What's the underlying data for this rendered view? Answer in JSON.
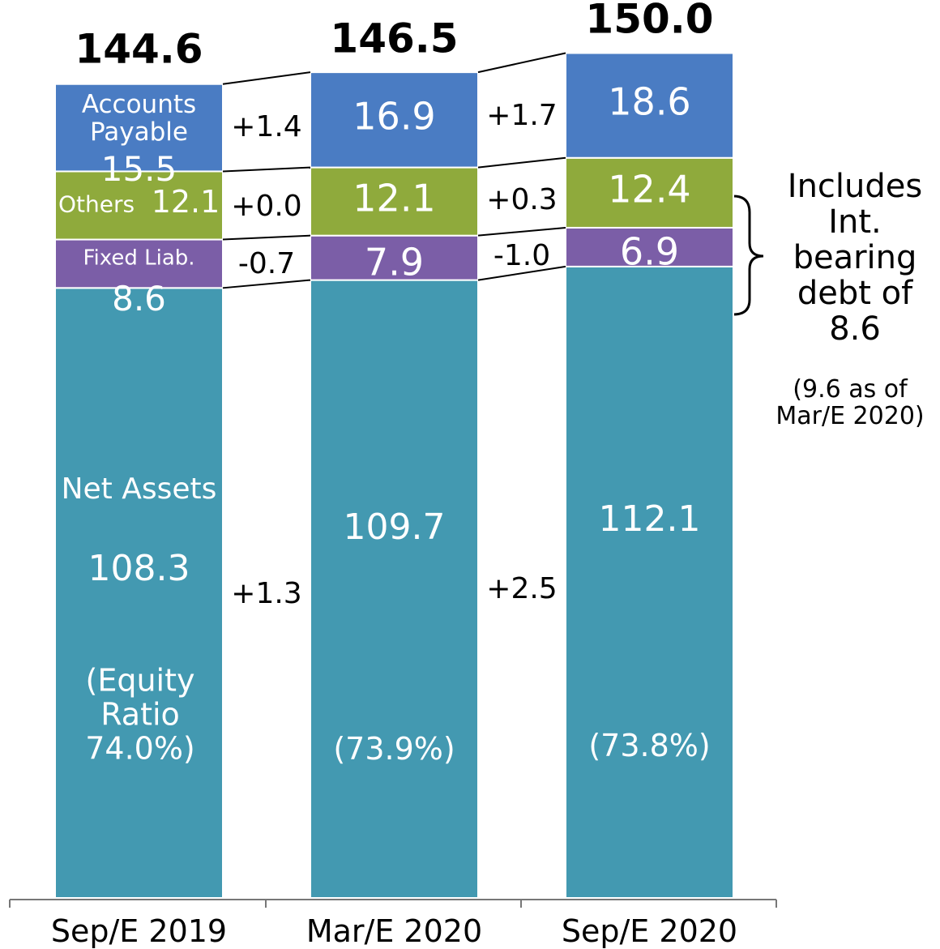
{
  "chart_data": {
    "type": "stacked-bar",
    "categories": [
      "Sep/E 2019",
      "Mar/E 2020",
      "Sep/E 2020"
    ],
    "series": [
      {
        "name": "Net Assets",
        "color": "#4399b1",
        "values": [
          108.3,
          109.7,
          112.1
        ],
        "changes": {
          "values": [
            1.3,
            2.5
          ],
          "value_labels": [
            "+1.3",
            "+2.5"
          ]
        }
      },
      {
        "name": "Fixed Liab.",
        "color": "#7b5ea7",
        "values": [
          8.6,
          7.9,
          6.9
        ],
        "changes": {
          "values": [
            -0.7,
            -1.0
          ],
          "value_labels": [
            "-0.7",
            "-1.0"
          ]
        }
      },
      {
        "name": "Others",
        "color": "#8faa3c",
        "values": [
          12.1,
          12.1,
          12.4
        ],
        "changes": {
          "values": [
            0.0,
            0.3
          ],
          "value_labels": [
            "+0.0",
            "+0.3"
          ]
        }
      },
      {
        "name": "Accounts Payable",
        "color": "#4a7cc3",
        "values": [
          15.5,
          16.9,
          18.6
        ],
        "changes": {
          "values": [
            1.4,
            1.7
          ],
          "value_labels": [
            "+1.4",
            "+1.7"
          ]
        }
      }
    ],
    "totals": {
      "values": [
        144.6,
        146.5,
        150.0
      ],
      "value_labels": [
        "144.6",
        "146.5",
        "150.0"
      ]
    },
    "equity_ratio_labels": [
      "(Equity Ratio 74.0%)",
      "(73.9%)",
      "(73.8%)"
    ],
    "annotation": "Includes Int. bearing debt of 8.6",
    "annotation_note": "(9.6 as of Mar/E 2020)"
  }
}
